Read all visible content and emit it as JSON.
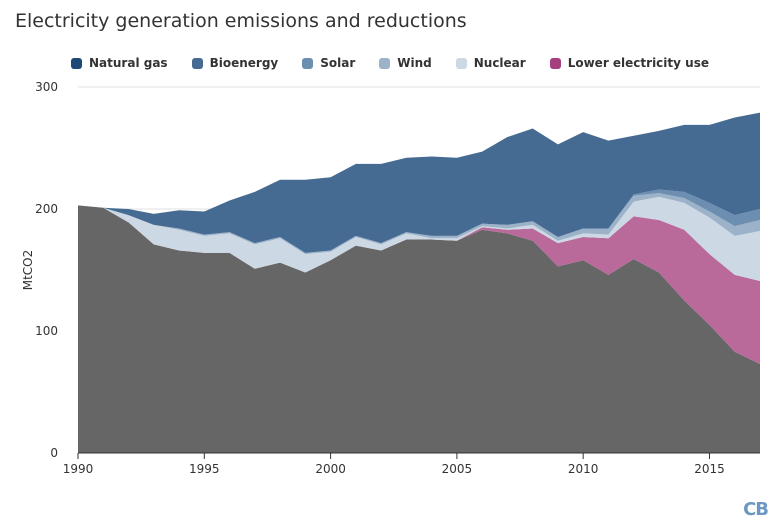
{
  "title": "Electricity generation emissions and reductions",
  "logo_text": "CB",
  "colors": {
    "base": "#666666",
    "Natural gas": "#1d4877",
    "Bioenergy": "#466b93",
    "Solar": "#6b8eb1",
    "Wind": "#9cb2c9",
    "Nuclear": "#ccd8e3",
    "Lower electricity use": "#b96a9a",
    "legend_lower": "#a4407e"
  },
  "chart_data": {
    "type": "area",
    "title": "Electricity generation emissions and reductions",
    "ylabel": "MtCO2",
    "xlabel": "",
    "x": [
      1990,
      1991,
      1992,
      1993,
      1994,
      1995,
      1996,
      1997,
      1998,
      1999,
      2000,
      2001,
      2002,
      2003,
      2004,
      2005,
      2006,
      2007,
      2008,
      2009,
      2010,
      2011,
      2012,
      2013,
      2014,
      2015,
      2016,
      2017
    ],
    "xlim": [
      1990,
      2017
    ],
    "ylim": [
      0,
      300
    ],
    "xticks": [
      1990,
      1995,
      2000,
      2005,
      2010,
      2015
    ],
    "yticks": [
      0,
      100,
      200,
      300
    ],
    "stacked": true,
    "base": {
      "values": [
        203,
        201,
        189,
        171,
        166,
        164,
        164,
        151,
        156,
        148,
        158,
        170,
        166,
        175,
        175,
        174,
        183,
        180,
        174,
        153,
        158,
        146,
        159,
        148,
        125,
        105,
        83,
        73
      ]
    },
    "series": [
      {
        "name": "Lower electricity use",
        "values": [
          0,
          0,
          0,
          0,
          0,
          0,
          0,
          0,
          0,
          0,
          0,
          0,
          0,
          0,
          0,
          0,
          2,
          3,
          10,
          19,
          19,
          30,
          35,
          43,
          58,
          58,
          63,
          68
        ]
      },
      {
        "name": "Nuclear",
        "values": [
          0,
          0,
          6,
          16,
          17,
          14,
          16,
          20,
          20,
          15,
          7,
          7,
          5,
          5,
          1,
          2,
          1,
          1,
          3,
          2,
          3,
          3,
          12,
          19,
          22,
          30,
          32,
          41
        ]
      },
      {
        "name": "Wind",
        "values": [
          0,
          0,
          0,
          0,
          1,
          1,
          1,
          1,
          1,
          1,
          1,
          1,
          1,
          1,
          2,
          2,
          2,
          3,
          3,
          3,
          4,
          5,
          5,
          3,
          4,
          5,
          8,
          9
        ]
      },
      {
        "name": "Solar",
        "values": [
          0,
          0,
          0,
          0,
          0,
          0,
          0,
          0,
          0,
          0,
          0,
          0,
          0,
          0,
          0,
          0,
          0,
          0,
          0,
          0,
          0,
          0,
          1,
          3,
          5,
          7,
          9,
          9
        ]
      },
      {
        "name": "Bioenergy",
        "values": [
          0,
          0,
          5,
          9,
          15,
          19,
          26,
          42,
          47,
          60,
          60,
          59,
          65,
          61,
          65,
          64,
          59,
          72,
          76,
          76,
          79,
          72,
          48,
          48,
          55,
          64,
          80,
          79
        ]
      },
      {
        "name": "Natural gas",
        "values": [
          0,
          0,
          0,
          0,
          0,
          0,
          0,
          0,
          0,
          0,
          0,
          0,
          0,
          0,
          0,
          0,
          0,
          0,
          0,
          0,
          0,
          0,
          0,
          0,
          0,
          0,
          0,
          0
        ]
      }
    ],
    "legend": [
      "Natural gas",
      "Bioenergy",
      "Solar",
      "Wind",
      "Nuclear",
      "Lower electricity use"
    ],
    "legend_placement": "top-center",
    "grid": "horizontal"
  }
}
